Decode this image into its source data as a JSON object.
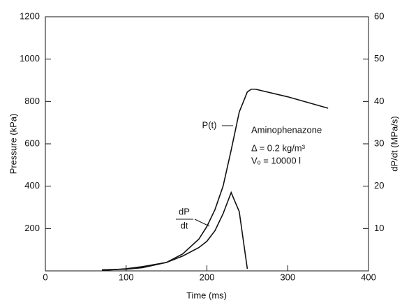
{
  "chart_data": {
    "type": "line",
    "x_label": "Time  (ms)",
    "y_label": "Pressure (kPa)",
    "y2_label": "dP/dt (MPa/s)",
    "xlim": [
      0,
      400
    ],
    "xticks": [
      0,
      100,
      200,
      300,
      400
    ],
    "ylim": [
      0,
      1200
    ],
    "yticks": [
      200,
      400,
      600,
      800,
      1000,
      1200
    ],
    "y2lim": [
      0,
      60
    ],
    "y2ticks": [
      10,
      20,
      30,
      40,
      50,
      60
    ],
    "x": [
      70,
      100,
      120,
      150,
      170,
      190,
      200,
      210,
      220,
      230,
      240,
      250,
      255,
      260,
      300,
      350
    ],
    "series": [
      {
        "label_lines": [
          "P(t)"
        ],
        "color": "#111111",
        "values": [
          5,
          8,
          15,
          40,
          80,
          150,
          210,
          290,
          400,
          570,
          750,
          845,
          858,
          858,
          822,
          768
        ]
      },
      {
        "label_lines": [
          "dP",
          "dt"
        ],
        "color": "#111111",
        "axis": "y2",
        "values": [
          0.1,
          0.5,
          1,
          2,
          3.5,
          5.5,
          7,
          9.5,
          13.5,
          18.5,
          14,
          0.5,
          null,
          null,
          null,
          null
        ]
      }
    ],
    "annotations": [
      "Aminophenazone",
      "Δ = 0.2 kg/m³",
      "Vₒ = 10000 l"
    ]
  }
}
